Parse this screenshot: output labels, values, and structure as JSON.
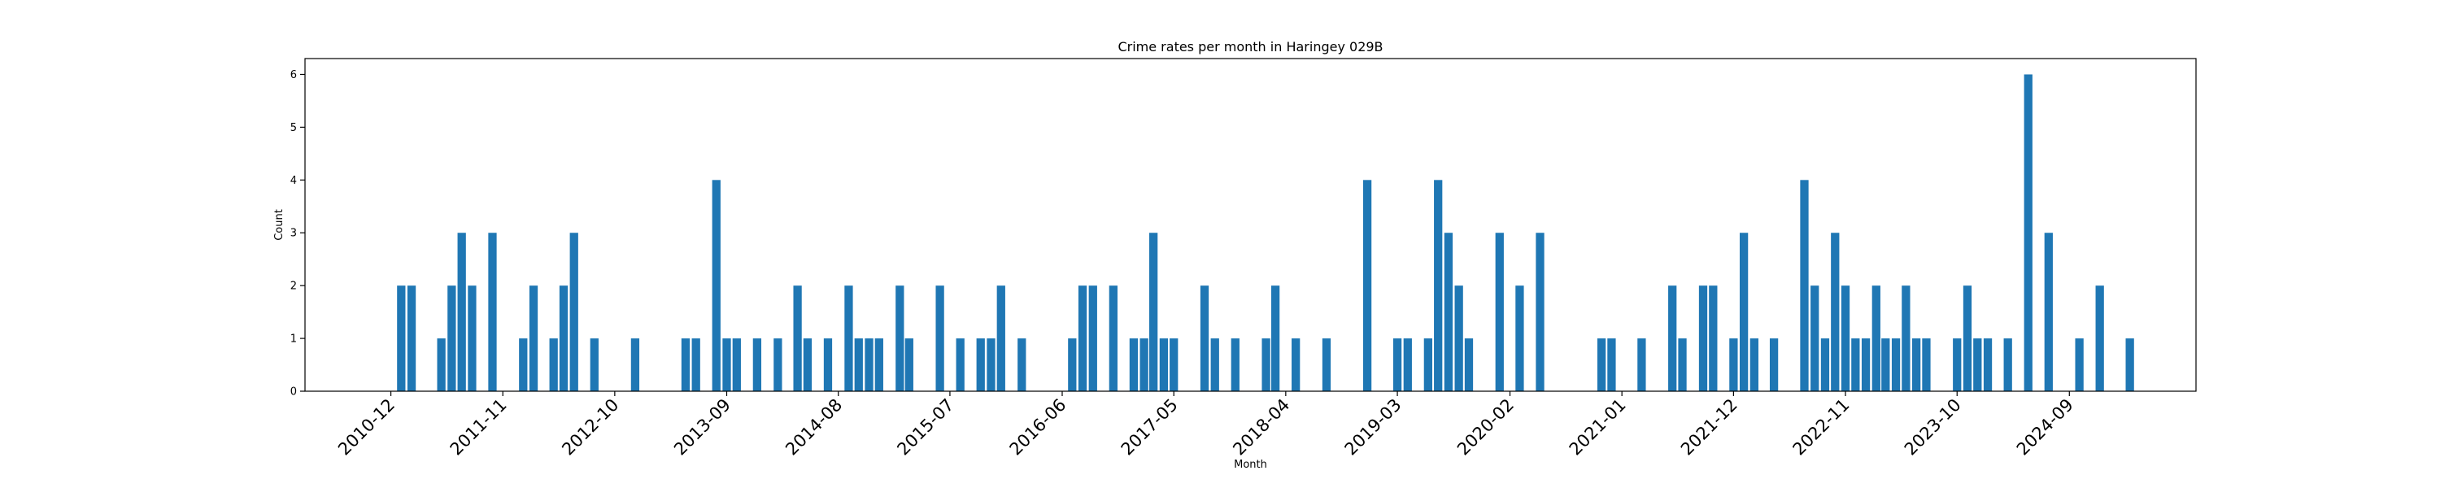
{
  "chart_data": {
    "type": "bar",
    "title": "Crime rates per month in Haringey 029B",
    "xlabel": "Month",
    "ylabel": "Count",
    "ylim": [
      0,
      6.3
    ],
    "yticks": [
      0,
      1,
      2,
      3,
      4,
      5,
      6
    ],
    "xlim": [
      "2010-03-19",
      "2025-09-15"
    ],
    "xticks": [
      "2010-12",
      "2011-11",
      "2012-10",
      "2013-09",
      "2014-08",
      "2015-07",
      "2016-06",
      "2017-05",
      "2018-04",
      "2019-03",
      "2020-02",
      "2021-01",
      "2021-12",
      "2022-11",
      "2023-10",
      "2024-09"
    ],
    "color": "#1f77b4",
    "grid": false,
    "points": [
      {
        "x": "2011-01",
        "y": 2
      },
      {
        "x": "2011-02",
        "y": 2
      },
      {
        "x": "2011-05",
        "y": 1
      },
      {
        "x": "2011-06",
        "y": 2
      },
      {
        "x": "2011-07",
        "y": 3
      },
      {
        "x": "2011-08",
        "y": 2
      },
      {
        "x": "2011-10",
        "y": 3
      },
      {
        "x": "2012-01",
        "y": 1
      },
      {
        "x": "2012-02",
        "y": 2
      },
      {
        "x": "2012-04",
        "y": 1
      },
      {
        "x": "2012-05",
        "y": 2
      },
      {
        "x": "2012-06",
        "y": 3
      },
      {
        "x": "2012-08",
        "y": 1
      },
      {
        "x": "2012-12",
        "y": 1
      },
      {
        "x": "2013-05",
        "y": 1
      },
      {
        "x": "2013-06",
        "y": 1
      },
      {
        "x": "2013-08",
        "y": 4
      },
      {
        "x": "2013-09",
        "y": 1
      },
      {
        "x": "2013-10",
        "y": 1
      },
      {
        "x": "2013-12",
        "y": 1
      },
      {
        "x": "2014-02",
        "y": 1
      },
      {
        "x": "2014-04",
        "y": 2
      },
      {
        "x": "2014-05",
        "y": 1
      },
      {
        "x": "2014-07",
        "y": 1
      },
      {
        "x": "2014-09",
        "y": 2
      },
      {
        "x": "2014-10",
        "y": 1
      },
      {
        "x": "2014-11",
        "y": 1
      },
      {
        "x": "2014-12",
        "y": 1
      },
      {
        "x": "2015-02",
        "y": 2
      },
      {
        "x": "2015-03",
        "y": 1
      },
      {
        "x": "2015-06",
        "y": 2
      },
      {
        "x": "2015-08",
        "y": 1
      },
      {
        "x": "2015-10",
        "y": 1
      },
      {
        "x": "2015-11",
        "y": 1
      },
      {
        "x": "2015-12",
        "y": 2
      },
      {
        "x": "2016-02",
        "y": 1
      },
      {
        "x": "2016-07",
        "y": 1
      },
      {
        "x": "2016-08",
        "y": 2
      },
      {
        "x": "2016-09",
        "y": 2
      },
      {
        "x": "2016-11",
        "y": 2
      },
      {
        "x": "2017-01",
        "y": 1
      },
      {
        "x": "2017-02",
        "y": 1
      },
      {
        "x": "2017-03",
        "y": 3
      },
      {
        "x": "2017-04",
        "y": 1
      },
      {
        "x": "2017-05",
        "y": 1
      },
      {
        "x": "2017-08",
        "y": 2
      },
      {
        "x": "2017-09",
        "y": 1
      },
      {
        "x": "2017-11",
        "y": 1
      },
      {
        "x": "2018-02",
        "y": 1
      },
      {
        "x": "2018-03",
        "y": 2
      },
      {
        "x": "2018-05",
        "y": 1
      },
      {
        "x": "2018-08",
        "y": 1
      },
      {
        "x": "2018-12",
        "y": 4
      },
      {
        "x": "2019-03",
        "y": 1
      },
      {
        "x": "2019-04",
        "y": 1
      },
      {
        "x": "2019-06",
        "y": 1
      },
      {
        "x": "2019-07",
        "y": 4
      },
      {
        "x": "2019-08",
        "y": 3
      },
      {
        "x": "2019-09",
        "y": 2
      },
      {
        "x": "2019-10",
        "y": 1
      },
      {
        "x": "2020-01",
        "y": 3
      },
      {
        "x": "2020-03",
        "y": 2
      },
      {
        "x": "2020-05",
        "y": 3
      },
      {
        "x": "2020-11",
        "y": 1
      },
      {
        "x": "2020-12",
        "y": 1
      },
      {
        "x": "2021-03",
        "y": 1
      },
      {
        "x": "2021-06",
        "y": 2
      },
      {
        "x": "2021-07",
        "y": 1
      },
      {
        "x": "2021-09",
        "y": 2
      },
      {
        "x": "2021-10",
        "y": 2
      },
      {
        "x": "2021-12",
        "y": 1
      },
      {
        "x": "2022-01",
        "y": 3
      },
      {
        "x": "2022-02",
        "y": 1
      },
      {
        "x": "2022-04",
        "y": 1
      },
      {
        "x": "2022-07",
        "y": 4
      },
      {
        "x": "2022-08",
        "y": 2
      },
      {
        "x": "2022-09",
        "y": 1
      },
      {
        "x": "2022-10",
        "y": 3
      },
      {
        "x": "2022-11",
        "y": 2
      },
      {
        "x": "2022-12",
        "y": 1
      },
      {
        "x": "2023-01",
        "y": 1
      },
      {
        "x": "2023-02",
        "y": 2
      },
      {
        "x": "2023-03",
        "y": 1
      },
      {
        "x": "2023-04",
        "y": 1
      },
      {
        "x": "2023-05",
        "y": 2
      },
      {
        "x": "2023-06",
        "y": 1
      },
      {
        "x": "2023-07",
        "y": 1
      },
      {
        "x": "2023-10",
        "y": 1
      },
      {
        "x": "2023-11",
        "y": 2
      },
      {
        "x": "2023-12",
        "y": 1
      },
      {
        "x": "2024-01",
        "y": 1
      },
      {
        "x": "2024-03",
        "y": 1
      },
      {
        "x": "2024-05",
        "y": 6
      },
      {
        "x": "2024-07",
        "y": 3
      },
      {
        "x": "2024-10",
        "y": 1
      },
      {
        "x": "2024-12",
        "y": 2
      },
      {
        "x": "2025-03",
        "y": 1
      }
    ]
  }
}
